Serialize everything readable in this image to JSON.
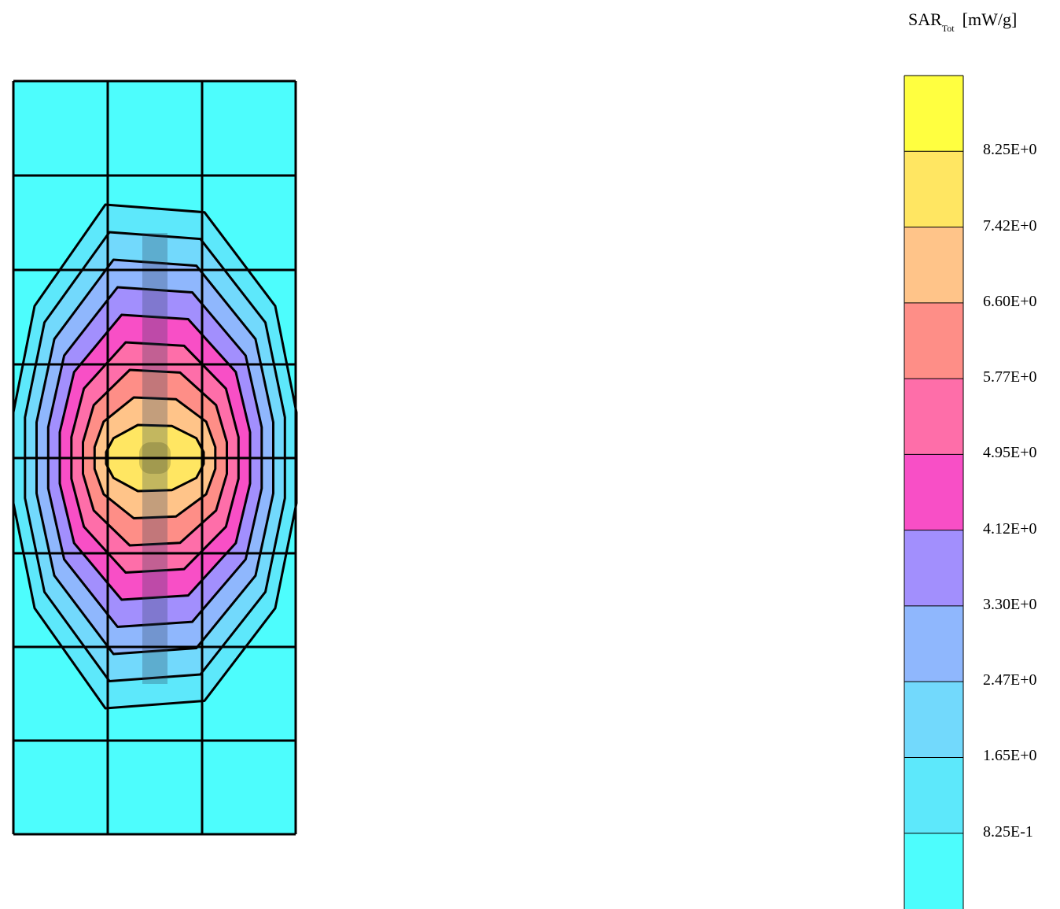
{
  "chart_data": {
    "type": "heatmap",
    "title": "",
    "legend": {
      "title": "SAR",
      "title_subscript": "Tot",
      "unit": "[mW/g]",
      "placement": "right",
      "levels": [
        {
          "color": "#4dfdfd"
        },
        {
          "color": "#5de8fb"
        },
        {
          "color": "#72d9fc"
        },
        {
          "color": "#8fb7fd"
        },
        {
          "color": "#a28ffd"
        },
        {
          "color": "#f84fc6"
        },
        {
          "color": "#fe6ea9"
        },
        {
          "color": "#fe8e87"
        },
        {
          "color": "#ffc489"
        },
        {
          "color": "#ffe662"
        },
        {
          "color": "#ffff40"
        }
      ],
      "tick_labels": [
        "8.25E+0",
        "7.42E+0",
        "6.60E+0",
        "5.77E+0",
        "4.95E+0",
        "4.12E+0",
        "3.30E+0",
        "2.47E+0",
        "1.65E+0",
        "8.25E-1"
      ]
    },
    "contour_bands_from_center": [
      9,
      8,
      7,
      6,
      5,
      4,
      3,
      2,
      1
    ],
    "grid": true
  }
}
